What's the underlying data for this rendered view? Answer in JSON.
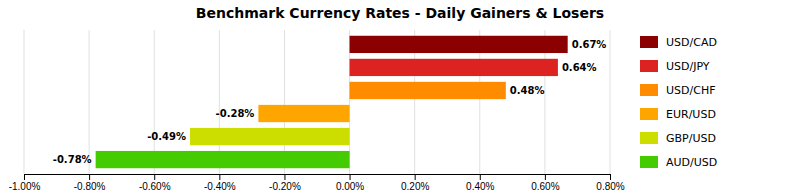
{
  "chart_data": {
    "type": "bar",
    "orientation": "horizontal",
    "title": "Benchmark Currency Rates - Daily Gainers & Losers",
    "categories": [
      "USD/CAD",
      "USD/JPY",
      "USD/CHF",
      "EUR/USD",
      "GBP/USD",
      "AUD/USD"
    ],
    "values": [
      0.0067,
      0.0064,
      0.0048,
      -0.0028,
      -0.0049,
      -0.0078
    ],
    "value_labels": [
      "0.67%",
      "0.64%",
      "0.48%",
      "-0.28%",
      "-0.49%",
      "-0.78%"
    ],
    "colors": [
      "#8B0000",
      "#DD2222",
      "#FF8C00",
      "#FFA500",
      "#CCDD00",
      "#44CC00"
    ],
    "xlim": [
      -0.01,
      0.008
    ],
    "xticks": [
      {
        "value": -0.01,
        "label": "-1.00%"
      },
      {
        "value": -0.008,
        "label": "-0.80%"
      },
      {
        "value": -0.006,
        "label": "-0.60%"
      },
      {
        "value": -0.004,
        "label": "-0.40%"
      },
      {
        "value": -0.002,
        "label": "-0.20%"
      },
      {
        "value": 0.0,
        "label": "0.00%"
      },
      {
        "value": 0.002,
        "label": "0.20%"
      },
      {
        "value": 0.004,
        "label": "0.40%"
      },
      {
        "value": 0.006,
        "label": "0.60%"
      },
      {
        "value": 0.008,
        "label": "0.80%"
      }
    ],
    "grid": true,
    "data_labels": true,
    "tick_labels": "x",
    "legend": "right"
  }
}
